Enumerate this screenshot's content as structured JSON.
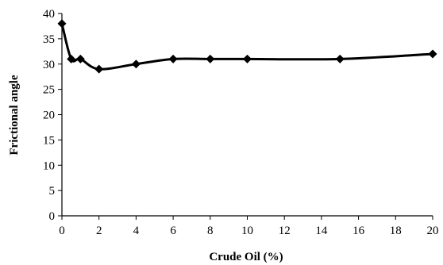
{
  "chart_data": {
    "type": "line",
    "xlabel": "Crude Oil (%)",
    "ylabel": "Frictional angle",
    "xlim": [
      0,
      20
    ],
    "ylim": [
      0,
      40
    ],
    "xticks": [
      0,
      2,
      4,
      6,
      8,
      10,
      12,
      14,
      16,
      18,
      20
    ],
    "yticks": [
      0,
      5,
      10,
      15,
      20,
      25,
      30,
      35,
      40
    ],
    "grid": false,
    "series": [
      {
        "x": [
          0,
          0.5,
          1,
          2,
          4,
          6,
          8,
          10,
          15,
          20
        ],
        "y": [
          38,
          31,
          31,
          29,
          30,
          31,
          31,
          31,
          31,
          32
        ]
      }
    ],
    "colors": {
      "line": "#000000",
      "marker": "#000000",
      "axis": "#000000"
    }
  }
}
